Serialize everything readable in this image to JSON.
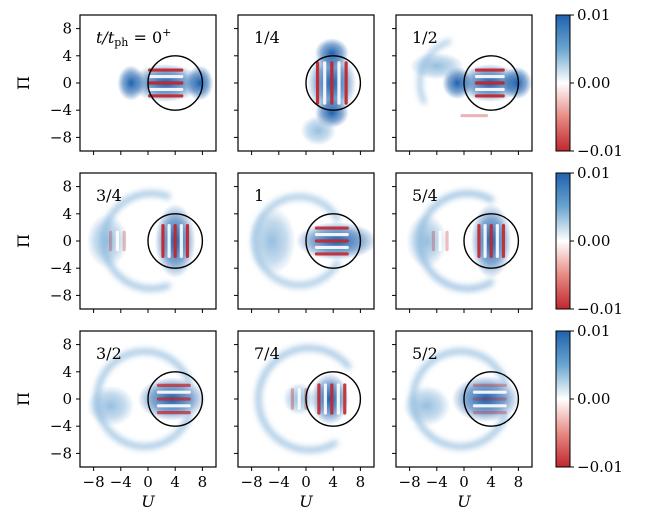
{
  "chart_data": {
    "type": "heatmap",
    "grid": {
      "rows": 3,
      "cols": 3
    },
    "xlabel": "U",
    "ylabel": "Π",
    "xlim": [
      -10,
      10
    ],
    "ylim": [
      -10,
      10
    ],
    "xticks": [
      -8,
      -4,
      0,
      4,
      8
    ],
    "xtick_labels": [
      "−8",
      "−4",
      "0",
      "4",
      "8"
    ],
    "yticks": [
      -8,
      -4,
      0,
      4,
      8
    ],
    "ytick_labels": [
      "−8",
      "−4",
      "0",
      "4",
      "8"
    ],
    "colorbar": {
      "range": [
        -0.01,
        0.01
      ],
      "ticks": [
        0.01,
        0.0,
        -0.01
      ],
      "tick_labels": [
        "0.01",
        "0.00",
        "−0.01"
      ],
      "colormap": "RdBu",
      "low_color": "#c0272d",
      "mid_color": "#ffffff",
      "high_color": "#1f62ae"
    },
    "circle": {
      "center": [
        4,
        0
      ],
      "radius": 4
    },
    "panels": [
      {
        "label_prefix": "t/t",
        "label_sub": "ph",
        "label_suffix": " = 0",
        "label_sup": "+",
        "time": 0
      },
      {
        "label": "1/4",
        "time": 0.25
      },
      {
        "label": "1/2",
        "time": 0.5
      },
      {
        "label": "3/4",
        "time": 0.75
      },
      {
        "label": "1",
        "time": 1
      },
      {
        "label": "5/4",
        "time": 1.25
      },
      {
        "label": "3/2",
        "time": 1.5
      },
      {
        "label": "7/4",
        "time": 1.75
      },
      {
        "label": "5/2",
        "time": 2.5
      }
    ]
  }
}
